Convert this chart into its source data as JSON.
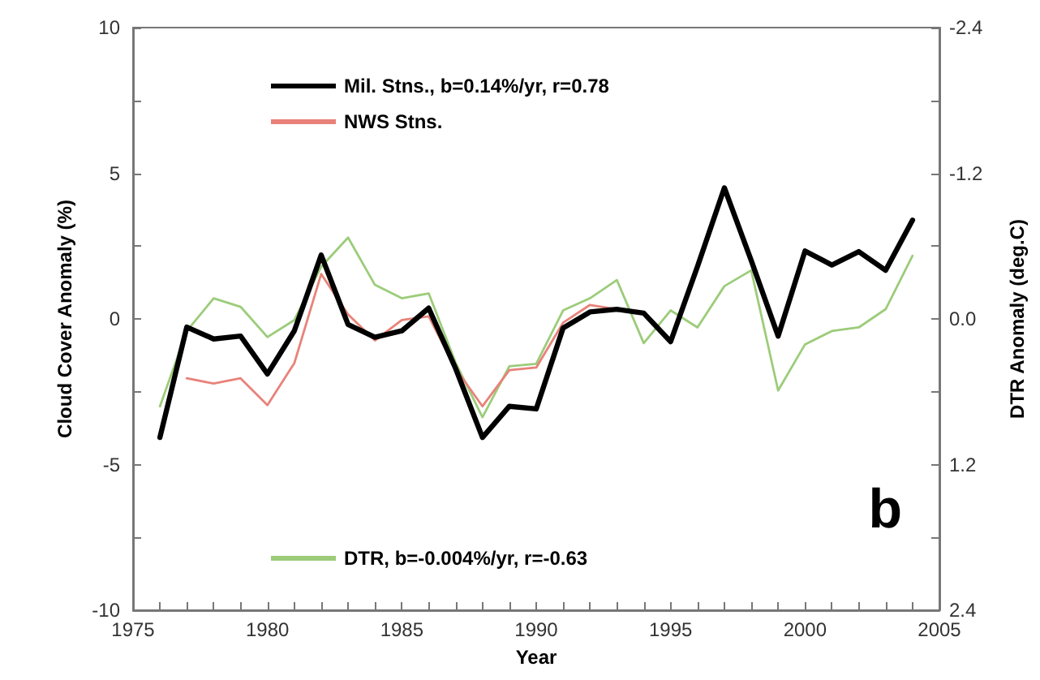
{
  "chart_data": {
    "type": "line",
    "xlabel": "Year",
    "ylabel": "Cloud Cover Anomaly (%)",
    "y2label": "DTR Anomaly (deg.C)",
    "x": [
      1976,
      1977,
      1978,
      1979,
      1980,
      1981,
      1982,
      1983,
      1984,
      1985,
      1986,
      1987,
      1988,
      1989,
      1990,
      1991,
      1992,
      1993,
      1994,
      1995,
      1996,
      1997,
      1998,
      1999,
      2000,
      2001,
      2002,
      2003,
      2004
    ],
    "series": [
      {
        "name": "Mil. Stns., b=0.14%/yr, r=0.78",
        "color": "#000000",
        "values": [
          -4.07,
          -0.28,
          -0.69,
          -0.59,
          -1.89,
          -0.41,
          2.19,
          -0.19,
          -0.63,
          -0.41,
          0.37,
          -1.7,
          -4.07,
          -3.0,
          -3.09,
          -0.31,
          0.24,
          0.33,
          0.2,
          -0.78,
          1.8,
          4.5,
          2.0,
          -0.59,
          2.33,
          1.85,
          2.31,
          1.67,
          3.39
        ]
      },
      {
        "name": "NWS Stns.",
        "color": "#e8827a",
        "values": [
          null,
          -2.04,
          -2.22,
          -2.04,
          -2.96,
          -1.52,
          1.54,
          0.15,
          -0.74,
          -0.04,
          0.09,
          -1.7,
          -3.0,
          -1.76,
          -1.67,
          -0.13,
          0.48,
          0.33,
          null,
          null,
          null,
          null,
          null,
          null,
          null,
          null,
          null,
          null,
          null
        ]
      },
      {
        "name": "DTR, b=-0.004%/yr, r=-0.63",
        "color": "#9ccc7a",
        "axis": "y2",
        "values": [
          0.72,
          0.1,
          -0.17,
          -0.1,
          0.15,
          0.01,
          -0.43,
          -0.67,
          -0.28,
          -0.17,
          -0.21,
          0.36,
          0.81,
          0.39,
          0.37,
          -0.07,
          -0.17,
          -0.32,
          0.2,
          -0.07,
          0.07,
          -0.27,
          -0.4,
          0.59,
          0.21,
          0.1,
          0.07,
          -0.08,
          -0.52
        ]
      }
    ],
    "xlim": [
      1975,
      2005
    ],
    "xticks": [
      1975,
      {
        "value": 1976,
        "label": null
      },
      {
        "value": 1977,
        "label": null
      },
      {
        "value": 1978,
        "label": null
      },
      {
        "value": 1979,
        "label": null
      },
      1980,
      {
        "value": 1981,
        "label": null
      },
      {
        "value": 1982,
        "label": null
      },
      {
        "value": 1983,
        "label": null
      },
      {
        "value": 1984,
        "label": null
      },
      1985,
      {
        "value": 1986,
        "label": null
      },
      {
        "value": 1987,
        "label": null
      },
      {
        "value": 1988,
        "label": null
      },
      {
        "value": 1989,
        "label": null
      },
      1990,
      {
        "value": 1991,
        "label": null
      },
      {
        "value": 1992,
        "label": null
      },
      {
        "value": 1993,
        "label": null
      },
      {
        "value": 1994,
        "label": null
      },
      1995,
      {
        "value": 1996,
        "label": null
      },
      {
        "value": 1997,
        "label": null
      },
      {
        "value": 1998,
        "label": null
      },
      {
        "value": 1999,
        "label": null
      },
      2000,
      {
        "value": 2001,
        "label": null
      },
      {
        "value": 2002,
        "label": null
      },
      {
        "value": 2003,
        "label": null
      },
      {
        "value": 2004,
        "label": null
      },
      2005
    ],
    "ylim": [
      -10,
      10
    ],
    "yticks": [
      -10,
      {
        "value": -7.5,
        "label": null
      },
      -5,
      {
        "value": -2.5,
        "label": null
      },
      0,
      {
        "value": 2.5,
        "label": null
      },
      5,
      {
        "value": 7.5,
        "label": null
      },
      10
    ],
    "y2lim": [
      2.4,
      -2.4
    ],
    "y2ticks": [
      {
        "value": 2.4,
        "label": "2.4"
      },
      {
        "value": 1.8,
        "label": null
      },
      {
        "value": 1.2,
        "label": "1.2"
      },
      {
        "value": 0.6,
        "label": null
      },
      {
        "value": 0,
        "label": "0.0"
      },
      {
        "value": -0.6,
        "label": null
      },
      {
        "value": -1.2,
        "label": "-1.2"
      },
      {
        "value": -1.8,
        "label": null
      },
      {
        "value": -2.4,
        "label": "-2.4"
      }
    ],
    "annotations": [
      "b"
    ],
    "legend": "left",
    "grid": false,
    "marker": "none",
    "line_style": "solid"
  }
}
